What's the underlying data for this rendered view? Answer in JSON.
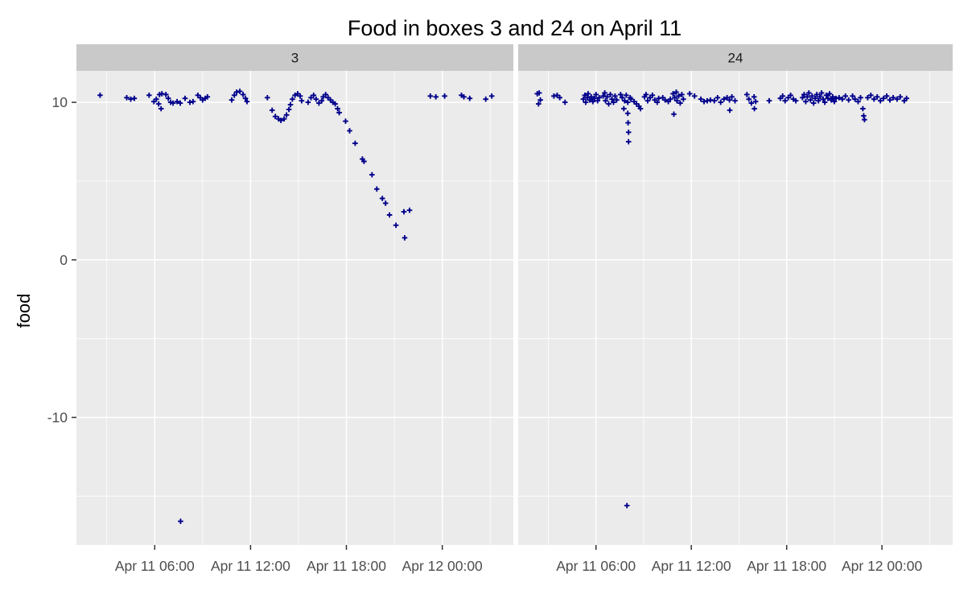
{
  "title": "Food in boxes 3 and 24 on April 11",
  "colors": {
    "background": "#FFFFFF",
    "panel_background": "#EBEBEB",
    "strip_background": "#C9C9C9",
    "gridline": "#FFFFFF",
    "point": "#00008B",
    "axis_text": "#4D4D4D",
    "tick_mark": "#333333",
    "title_text": "#000000"
  },
  "chart_data": {
    "type": "scatter",
    "title": "Food in boxes 3 and 24 on April 11",
    "xlabel": "",
    "ylabel": "food",
    "x_unit": "hours since Apr 11 00:00",
    "marker": "plus",
    "legend": "none",
    "grid": "white major and minor gridlines on gray panel",
    "xlim": [
      1.1,
      28.45
    ],
    "ylim": [
      -18.1,
      12.0
    ],
    "x_ticks": [
      {
        "hour": 6,
        "label": "Apr 11 06:00"
      },
      {
        "hour": 12,
        "label": "Apr 11 12:00"
      },
      {
        "hour": 18,
        "label": "Apr 11 18:00"
      },
      {
        "hour": 24,
        "label": "Apr 12 00:00"
      }
    ],
    "x_minor": [
      3,
      9,
      15,
      21,
      27
    ],
    "y_ticks": [
      {
        "value": 10,
        "label": "10"
      },
      {
        "value": 0,
        "label": "0"
      },
      {
        "value": -10,
        "label": "-10"
      }
    ],
    "y_minor": [
      5,
      -5,
      -15
    ],
    "facets": [
      {
        "label": "3",
        "points": [
          [
            2.58,
            10.45
          ],
          [
            4.25,
            10.3
          ],
          [
            4.5,
            10.2
          ],
          [
            4.72,
            10.25
          ],
          [
            5.65,
            10.45
          ],
          [
            5.95,
            10.05
          ],
          [
            6.1,
            10.2
          ],
          [
            6.25,
            9.9
          ],
          [
            6.3,
            10.5
          ],
          [
            6.4,
            9.6
          ],
          [
            6.45,
            10.55
          ],
          [
            6.7,
            10.5
          ],
          [
            6.85,
            10.25
          ],
          [
            7.0,
            10.0
          ],
          [
            7.15,
            9.95
          ],
          [
            7.4,
            10.05
          ],
          [
            7.6,
            9.95
          ],
          [
            7.9,
            10.25
          ],
          [
            8.2,
            10.0
          ],
          [
            8.4,
            10.05
          ],
          [
            8.7,
            10.45
          ],
          [
            8.85,
            10.3
          ],
          [
            9.0,
            10.15
          ],
          [
            9.16,
            10.25
          ],
          [
            9.3,
            10.35
          ],
          [
            10.82,
            10.15
          ],
          [
            10.98,
            10.45
          ],
          [
            11.13,
            10.65
          ],
          [
            11.33,
            10.7
          ],
          [
            11.53,
            10.5
          ],
          [
            11.68,
            10.25
          ],
          [
            11.78,
            10.05
          ],
          [
            13.05,
            10.3
          ],
          [
            13.35,
            9.5
          ],
          [
            13.55,
            9.1
          ],
          [
            13.75,
            8.95
          ],
          [
            13.9,
            8.85
          ],
          [
            14.1,
            8.95
          ],
          [
            14.25,
            9.2
          ],
          [
            14.4,
            9.55
          ],
          [
            14.5,
            9.85
          ],
          [
            14.62,
            10.2
          ],
          [
            14.78,
            10.45
          ],
          [
            14.95,
            10.55
          ],
          [
            15.1,
            10.4
          ],
          [
            15.2,
            10.1
          ],
          [
            15.6,
            10.0
          ],
          [
            15.78,
            10.3
          ],
          [
            15.95,
            10.45
          ],
          [
            16.1,
            10.2
          ],
          [
            16.28,
            9.95
          ],
          [
            16.45,
            10.1
          ],
          [
            16.55,
            10.35
          ],
          [
            16.7,
            10.5
          ],
          [
            16.85,
            10.3
          ],
          [
            17.0,
            10.15
          ],
          [
            17.15,
            10.0
          ],
          [
            17.3,
            9.9
          ],
          [
            17.45,
            9.6
          ],
          [
            17.55,
            9.35
          ],
          [
            17.95,
            8.8
          ],
          [
            18.2,
            8.2
          ],
          [
            18.55,
            7.4
          ],
          [
            19.0,
            6.4
          ],
          [
            19.1,
            6.25
          ],
          [
            19.6,
            5.4
          ],
          [
            19.9,
            4.5
          ],
          [
            20.25,
            3.9
          ],
          [
            20.45,
            3.6
          ],
          [
            20.7,
            2.85
          ],
          [
            21.1,
            2.2
          ],
          [
            21.6,
            3.05
          ],
          [
            21.95,
            3.15
          ],
          [
            21.65,
            1.4
          ],
          [
            23.25,
            10.4
          ],
          [
            23.6,
            10.35
          ],
          [
            24.15,
            10.4
          ],
          [
            25.2,
            10.45
          ],
          [
            25.35,
            10.35
          ],
          [
            25.72,
            10.25
          ],
          [
            26.72,
            10.2
          ],
          [
            27.1,
            10.4
          ],
          [
            7.62,
            -16.6
          ]
        ]
      },
      {
        "label": "24",
        "points": [
          [
            2.3,
            10.55
          ],
          [
            2.42,
            10.6
          ],
          [
            2.5,
            10.15
          ],
          [
            2.38,
            9.9
          ],
          [
            3.35,
            10.4
          ],
          [
            3.55,
            10.45
          ],
          [
            3.72,
            10.3
          ],
          [
            4.05,
            10.0
          ],
          [
            5.2,
            10.2
          ],
          [
            5.3,
            10.45
          ],
          [
            5.35,
            10.0
          ],
          [
            5.45,
            10.3
          ],
          [
            5.5,
            10.55
          ],
          [
            5.6,
            10.15
          ],
          [
            5.7,
            10.35
          ],
          [
            5.8,
            10.05
          ],
          [
            5.9,
            10.25
          ],
          [
            6.0,
            10.5
          ],
          [
            6.1,
            10.1
          ],
          [
            6.2,
            10.3
          ],
          [
            6.45,
            10.4
          ],
          [
            6.55,
            10.6
          ],
          [
            6.6,
            10.1
          ],
          [
            6.7,
            10.35
          ],
          [
            6.8,
            9.9
          ],
          [
            6.9,
            10.5
          ],
          [
            7.0,
            10.2
          ],
          [
            7.1,
            10.0
          ],
          [
            7.2,
            10.4
          ],
          [
            7.3,
            10.15
          ],
          [
            7.55,
            10.5
          ],
          [
            7.65,
            10.3
          ],
          [
            7.75,
            9.6
          ],
          [
            7.8,
            10.1
          ],
          [
            7.9,
            10.45
          ],
          [
            8.0,
            10.0
          ],
          [
            8.0,
            9.3
          ],
          [
            8.02,
            8.7
          ],
          [
            8.05,
            8.1
          ],
          [
            8.05,
            7.5
          ],
          [
            8.15,
            10.3
          ],
          [
            8.2,
            10.2
          ],
          [
            8.4,
            10.05
          ],
          [
            8.55,
            9.9
          ],
          [
            8.7,
            9.75
          ],
          [
            8.8,
            9.6
          ],
          [
            9.05,
            10.35
          ],
          [
            9.15,
            10.5
          ],
          [
            9.25,
            10.1
          ],
          [
            9.4,
            10.3
          ],
          [
            9.55,
            10.45
          ],
          [
            9.7,
            10.15
          ],
          [
            9.85,
            10.0
          ],
          [
            9.95,
            10.25
          ],
          [
            10.2,
            10.3
          ],
          [
            10.35,
            10.15
          ],
          [
            10.55,
            10.05
          ],
          [
            10.68,
            10.2
          ],
          [
            10.85,
            10.55
          ],
          [
            10.9,
            9.25
          ],
          [
            10.95,
            10.3
          ],
          [
            11.05,
            10.65
          ],
          [
            11.1,
            10.1
          ],
          [
            11.2,
            10.4
          ],
          [
            11.3,
            9.95
          ],
          [
            11.4,
            10.5
          ],
          [
            11.5,
            10.2
          ],
          [
            11.9,
            10.55
          ],
          [
            12.2,
            10.4
          ],
          [
            12.6,
            10.2
          ],
          [
            12.8,
            10.05
          ],
          [
            13.0,
            10.1
          ],
          [
            13.2,
            10.15
          ],
          [
            13.45,
            10.1
          ],
          [
            13.65,
            10.3
          ],
          [
            13.85,
            10.0
          ],
          [
            14.05,
            10.2
          ],
          [
            14.25,
            10.3
          ],
          [
            14.4,
            10.15
          ],
          [
            14.42,
            9.5
          ],
          [
            14.55,
            10.35
          ],
          [
            14.75,
            10.1
          ],
          [
            15.5,
            10.5
          ],
          [
            15.62,
            10.2
          ],
          [
            15.78,
            9.95
          ],
          [
            15.95,
            10.35
          ],
          [
            15.97,
            9.6
          ],
          [
            16.05,
            10.05
          ],
          [
            16.9,
            10.1
          ],
          [
            17.6,
            10.25
          ],
          [
            17.75,
            10.4
          ],
          [
            17.9,
            10.1
          ],
          [
            18.1,
            10.3
          ],
          [
            18.25,
            10.45
          ],
          [
            18.42,
            10.2
          ],
          [
            18.58,
            10.1
          ],
          [
            19.0,
            10.3
          ],
          [
            19.1,
            10.5
          ],
          [
            19.2,
            10.05
          ],
          [
            19.3,
            10.35
          ],
          [
            19.4,
            10.6
          ],
          [
            19.5,
            10.15
          ],
          [
            19.6,
            10.4
          ],
          [
            19.7,
            9.95
          ],
          [
            19.8,
            10.25
          ],
          [
            19.9,
            10.5
          ],
          [
            20.0,
            10.1
          ],
          [
            20.1,
            10.35
          ],
          [
            20.2,
            10.6
          ],
          [
            20.3,
            10.2
          ],
          [
            20.4,
            10.0
          ],
          [
            20.5,
            10.45
          ],
          [
            20.6,
            10.25
          ],
          [
            20.7,
            10.55
          ],
          [
            20.8,
            10.15
          ],
          [
            20.9,
            10.35
          ],
          [
            21.0,
            10.05
          ],
          [
            21.1,
            10.25
          ],
          [
            21.3,
            10.3
          ],
          [
            21.5,
            10.2
          ],
          [
            21.7,
            10.4
          ],
          [
            21.9,
            10.15
          ],
          [
            22.15,
            10.4
          ],
          [
            22.3,
            10.2
          ],
          [
            22.5,
            10.05
          ],
          [
            22.65,
            10.3
          ],
          [
            22.8,
            9.6
          ],
          [
            22.85,
            9.15
          ],
          [
            22.9,
            8.9
          ],
          [
            23.1,
            10.3
          ],
          [
            23.3,
            10.45
          ],
          [
            23.5,
            10.2
          ],
          [
            23.7,
            10.35
          ],
          [
            23.9,
            10.1
          ],
          [
            24.1,
            10.25
          ],
          [
            24.3,
            10.4
          ],
          [
            24.5,
            10.15
          ],
          [
            24.7,
            10.3
          ],
          [
            24.95,
            10.2
          ],
          [
            25.15,
            10.35
          ],
          [
            25.4,
            10.1
          ],
          [
            25.55,
            10.25
          ],
          [
            7.95,
            -15.6
          ]
        ]
      }
    ]
  }
}
